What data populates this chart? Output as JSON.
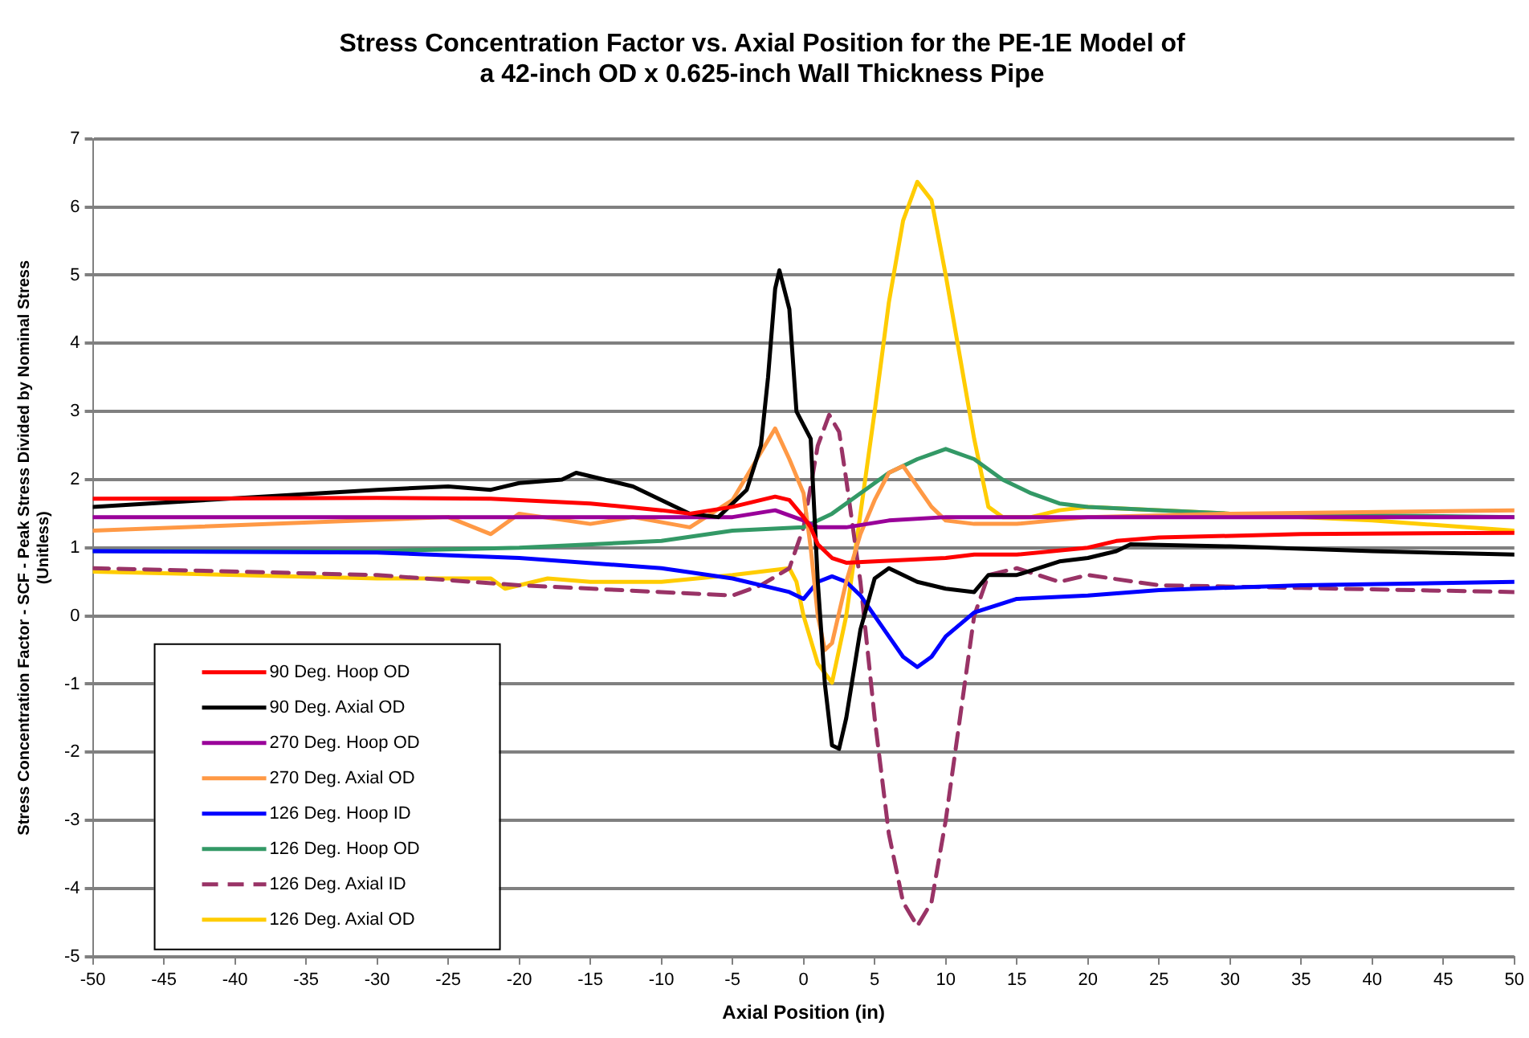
{
  "chart_data": {
    "type": "line",
    "title": "Stress Concentration Factor vs. Axial Position for the PE-1E Model of\na 42-inch OD x 0.625-inch Wall Thickness Pipe",
    "xlabel": "Axial Position (in)",
    "ylabel": "Stress Concentration Factor - SCF - Peak Stress Divided by Nominal Stress\n(Unitless)",
    "xlim": [
      -50,
      50
    ],
    "xticks": [
      -50,
      -45,
      -40,
      -35,
      -30,
      -25,
      -20,
      -15,
      -10,
      -5,
      0,
      5,
      10,
      15,
      20,
      25,
      30,
      35,
      40,
      45,
      50
    ],
    "ylim": [
      -5,
      7
    ],
    "yticks": [
      -5,
      -4,
      -3,
      -2,
      -1,
      0,
      1,
      2,
      3,
      4,
      5,
      6,
      7
    ],
    "grid": "y",
    "legend": "bottom left",
    "marker": "none",
    "series": [
      {
        "name": "90 Deg. Hoop OD",
        "color": "#ff0000",
        "x": [
          -50,
          -30,
          -22,
          -15,
          -10,
          -8,
          -5,
          -2,
          -1,
          0,
          0.5,
          1,
          2,
          3,
          5,
          10,
          12,
          15,
          20,
          22,
          25,
          35,
          50
        ],
        "values": [
          1.72,
          1.73,
          1.72,
          1.65,
          1.55,
          1.5,
          1.6,
          1.75,
          1.7,
          1.45,
          1.3,
          1.05,
          0.85,
          0.78,
          0.8,
          0.85,
          0.9,
          0.9,
          1.0,
          1.1,
          1.15,
          1.2,
          1.22
        ]
      },
      {
        "name": "90 Deg. Axial OD",
        "color": "#000000",
        "x": [
          -50,
          -30,
          -25,
          -22,
          -20,
          -17,
          -16,
          -14,
          -12,
          -10,
          -8,
          -6,
          -4,
          -3,
          -2.5,
          -2,
          -1.7,
          -1,
          -0.5,
          0,
          0.5,
          1,
          1.5,
          2,
          2.5,
          3,
          4,
          5,
          6,
          8,
          10,
          12,
          13,
          15,
          18,
          20,
          22,
          23,
          30,
          40,
          50
        ],
        "values": [
          1.6,
          1.85,
          1.9,
          1.85,
          1.95,
          2.0,
          2.1,
          2.0,
          1.9,
          1.7,
          1.5,
          1.45,
          1.85,
          2.5,
          3.5,
          4.8,
          5.07,
          4.5,
          3.0,
          2.8,
          2.6,
          0.5,
          -1.0,
          -1.9,
          -1.95,
          -1.5,
          -0.2,
          0.55,
          0.7,
          0.5,
          0.4,
          0.35,
          0.6,
          0.6,
          0.8,
          0.85,
          0.95,
          1.05,
          1.02,
          0.95,
          0.9
        ]
      },
      {
        "name": "270 Deg. Hoop OD",
        "color": "#990099",
        "x": [
          -50,
          -20,
          -10,
          -5,
          -2,
          0,
          1,
          3,
          6,
          10,
          20,
          50
        ],
        "values": [
          1.45,
          1.45,
          1.45,
          1.45,
          1.55,
          1.4,
          1.3,
          1.3,
          1.4,
          1.45,
          1.45,
          1.45
        ]
      },
      {
        "name": "270 Deg. Axial OD",
        "color": "#ff9945",
        "x": [
          -50,
          -25,
          -22,
          -20,
          -15,
          -12,
          -8,
          -5,
          -3,
          -2,
          -1,
          0,
          0.5,
          1,
          1.5,
          2,
          3,
          4,
          5,
          6,
          7,
          8,
          9,
          10,
          12,
          15,
          20,
          30,
          50
        ],
        "values": [
          1.25,
          1.45,
          1.2,
          1.5,
          1.35,
          1.45,
          1.3,
          1.7,
          2.4,
          2.75,
          2.3,
          1.8,
          1.0,
          0.0,
          -0.5,
          -0.4,
          0.5,
          1.2,
          1.7,
          2.1,
          2.2,
          1.9,
          1.6,
          1.4,
          1.35,
          1.35,
          1.45,
          1.5,
          1.55
        ]
      },
      {
        "name": "126 Deg. Hoop ID",
        "color": "#0000ff",
        "x": [
          -50,
          -30,
          -20,
          -10,
          -5,
          -1,
          0,
          1,
          2,
          3,
          4,
          6,
          7,
          8,
          9,
          10,
          12,
          15,
          20,
          25,
          35,
          50
        ],
        "values": [
          0.95,
          0.93,
          0.85,
          0.7,
          0.55,
          0.35,
          0.25,
          0.5,
          0.58,
          0.5,
          0.3,
          -0.3,
          -0.6,
          -0.75,
          -0.6,
          -0.3,
          0.05,
          0.25,
          0.3,
          0.38,
          0.45,
          0.5
        ]
      },
      {
        "name": "126 Deg. Hoop OD",
        "color": "#339966",
        "x": [
          -50,
          -30,
          -20,
          -10,
          -5,
          0,
          2,
          4,
          6,
          8,
          10,
          12,
          14,
          16,
          18,
          20,
          30,
          50
        ],
        "values": [
          0.95,
          0.95,
          1.0,
          1.1,
          1.25,
          1.3,
          1.5,
          1.8,
          2.1,
          2.3,
          2.45,
          2.3,
          2.0,
          1.8,
          1.65,
          1.6,
          1.5,
          1.45
        ]
      },
      {
        "name": "126 Deg. Axial ID",
        "color": "#993366",
        "line_style": "dashed",
        "x": [
          -50,
          -30,
          -20,
          -10,
          -5,
          -3,
          -1,
          0,
          1,
          1.8,
          2.5,
          3,
          4,
          5,
          6,
          7,
          8,
          9,
          10,
          11,
          12,
          13,
          15,
          18,
          20,
          25,
          35,
          50
        ],
        "values": [
          0.7,
          0.6,
          0.45,
          0.35,
          0.3,
          0.45,
          0.7,
          1.3,
          2.5,
          2.95,
          2.7,
          2.0,
          0.5,
          -1.5,
          -3.2,
          -4.2,
          -4.55,
          -4.2,
          -3.0,
          -1.5,
          0.0,
          0.6,
          0.7,
          0.5,
          0.6,
          0.45,
          0.41,
          0.35
        ]
      },
      {
        "name": "126 Deg. Axial OD",
        "color": "#ffcc00",
        "x": [
          -50,
          -30,
          -22,
          -21,
          -18,
          -15,
          -10,
          -5,
          -1,
          -0.5,
          0,
          1,
          2,
          3,
          4,
          5,
          6,
          7,
          8,
          9,
          10,
          11,
          12,
          13,
          14,
          16,
          18,
          20,
          30,
          40,
          50
        ],
        "values": [
          0.65,
          0.55,
          0.55,
          0.4,
          0.55,
          0.5,
          0.5,
          0.6,
          0.7,
          0.5,
          0.0,
          -0.7,
          -0.98,
          0.0,
          1.5,
          3.0,
          4.6,
          5.8,
          6.37,
          6.1,
          5.0,
          3.8,
          2.6,
          1.6,
          1.45,
          1.45,
          1.55,
          1.6,
          1.5,
          1.4,
          1.25
        ]
      }
    ]
  }
}
